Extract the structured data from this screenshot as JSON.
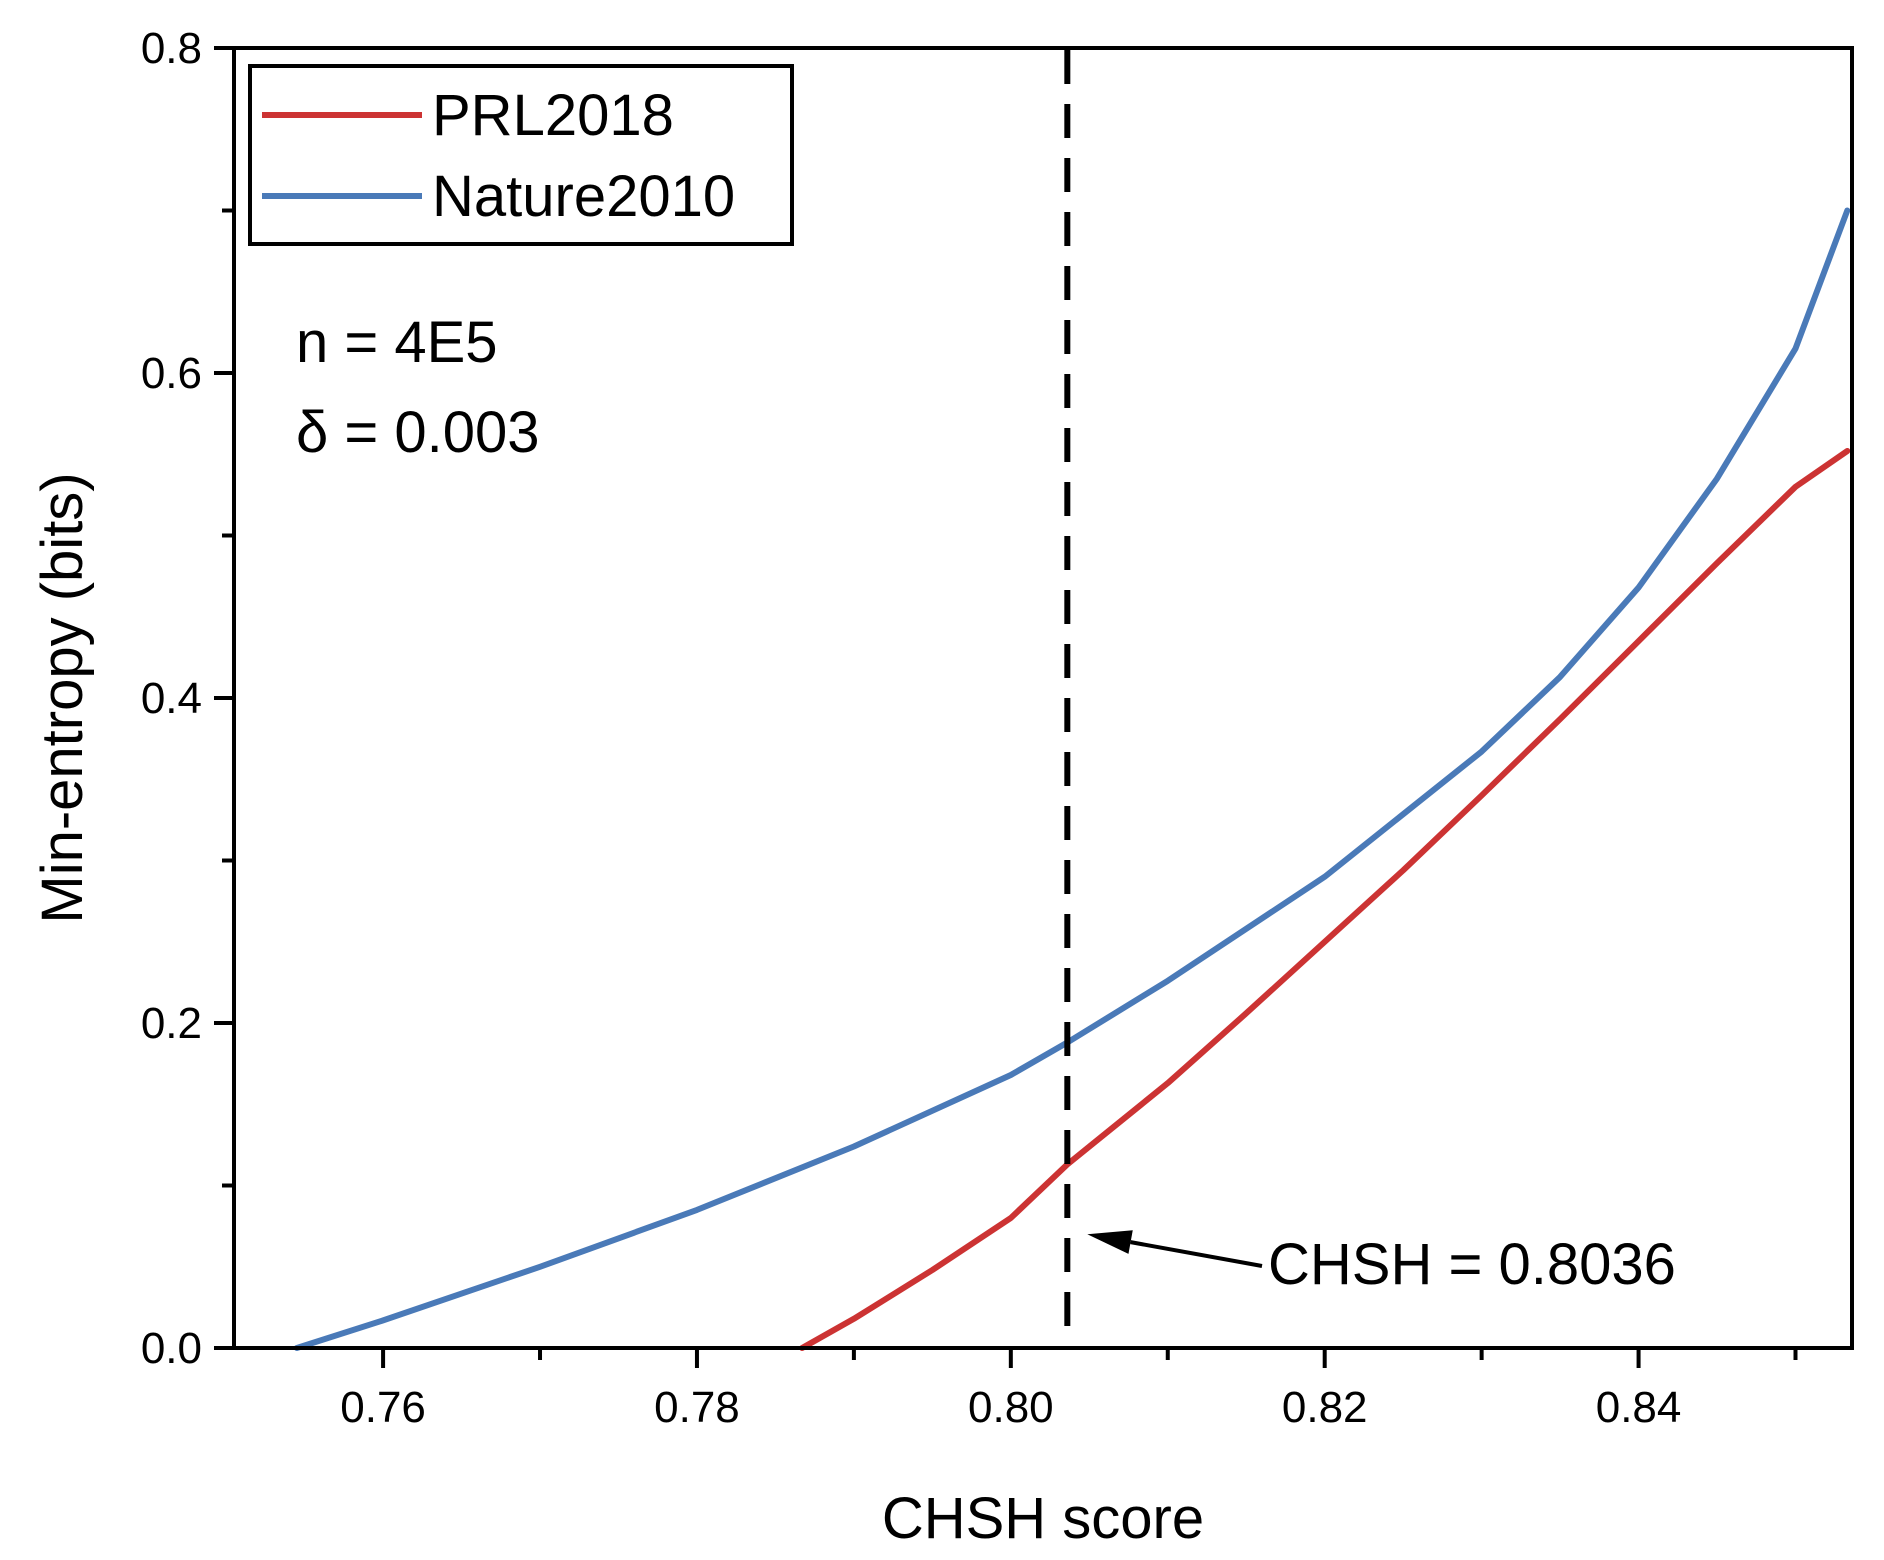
{
  "chart_data": {
    "type": "line",
    "title": "",
    "xlabel": "CHSH score",
    "ylabel": "Min-entropy (bits)",
    "xlim": [
      0.7505,
      0.8536
    ],
    "ylim": [
      0.0,
      0.8
    ],
    "x_ticks": [
      0.76,
      0.78,
      0.8,
      0.82,
      0.84
    ],
    "x_tick_labels": [
      "0.76",
      "0.78",
      "0.80",
      "0.82",
      "0.84"
    ],
    "y_ticks": [
      0.0,
      0.2,
      0.4,
      0.6,
      0.8
    ],
    "y_tick_labels": [
      "0.0",
      "0.2",
      "0.4",
      "0.6",
      "0.8"
    ],
    "grid": false,
    "legend_position": "top-left",
    "series": [
      {
        "name": "PRL2018",
        "color": "#cc3333",
        "x": [
          0.7867,
          0.79,
          0.795,
          0.8,
          0.8036,
          0.81,
          0.815,
          0.82,
          0.825,
          0.83,
          0.835,
          0.84,
          0.845,
          0.85,
          0.8533
        ],
        "y": [
          0.0,
          0.018,
          0.048,
          0.08,
          0.113,
          0.163,
          0.206,
          0.25,
          0.294,
          0.34,
          0.387,
          0.435,
          0.483,
          0.53,
          0.552
        ]
      },
      {
        "name": "Nature2010",
        "color": "#4a7ab8",
        "x": [
          0.7545,
          0.76,
          0.77,
          0.78,
          0.79,
          0.8,
          0.8036,
          0.81,
          0.82,
          0.83,
          0.835,
          0.84,
          0.845,
          0.85,
          0.8533
        ],
        "y": [
          0.0,
          0.017,
          0.05,
          0.085,
          0.124,
          0.168,
          0.188,
          0.226,
          0.29,
          0.367,
          0.413,
          0.468,
          0.535,
          0.615,
          0.7
        ]
      }
    ],
    "annotations": {
      "params_line1": "n = 4E5",
      "params_line2": "δ = 0.003",
      "vline_x": 0.8036,
      "arrow_label": "CHSH = 0.8036",
      "arrow_target_y": 0.07
    }
  }
}
